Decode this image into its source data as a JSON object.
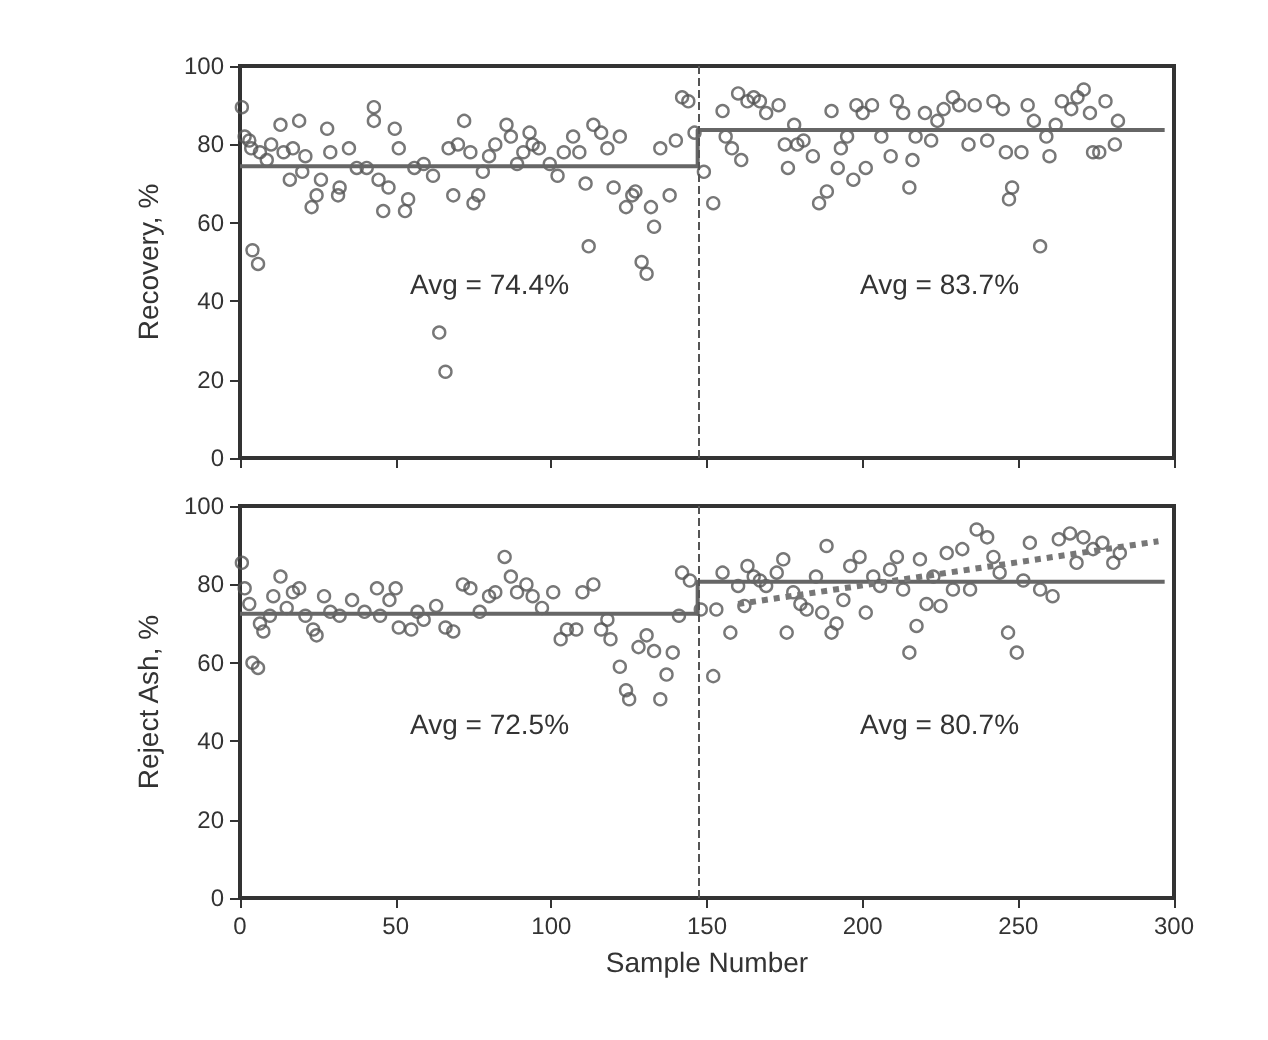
{
  "chart_data": [
    {
      "type": "scatter",
      "ylabel": "Recovery, %",
      "xlim": [
        0,
        300
      ],
      "xticks": [
        0,
        50,
        100,
        150,
        200,
        250,
        300
      ],
      "ylim": [
        0,
        100
      ],
      "yticks": [
        0,
        20,
        40,
        60,
        80,
        100
      ],
      "tick_labels": "y",
      "grid": false,
      "annotations": [
        "Avg = 74.4%",
        "Avg = 83.7%"
      ],
      "ref_lines": [
        {
          "axis": "x",
          "value": 147,
          "color": "#555555",
          "line_style": "dashed"
        }
      ],
      "series": [
        {
          "color": "#555555",
          "marker": "circle",
          "x": [
            0.6,
            1.5,
            3,
            3.6,
            4,
            5.8,
            6.4,
            8.6,
            10,
            13,
            14,
            16,
            17,
            19,
            20,
            21,
            23,
            24.6,
            26,
            28,
            29,
            31.5,
            32,
            35,
            37.5,
            40.7,
            43,
            43,
            44.5,
            46,
            47.7,
            49.7,
            51,
            53,
            54,
            56,
            59,
            62,
            64,
            66,
            67,
            68.5,
            70,
            72,
            74,
            75,
            76.5,
            78,
            80,
            82,
            85.6,
            87,
            89,
            91,
            93,
            94,
            96,
            99.5,
            102,
            104,
            107,
            109,
            111,
            112,
            113.5,
            116,
            118,
            120,
            122,
            124,
            126,
            127,
            129,
            130.6,
            132,
            133,
            135,
            138,
            140,
            142,
            144,
            146,
            149,
            152,
            155,
            156,
            158,
            160,
            161,
            163,
            165,
            167,
            169,
            173,
            175,
            176,
            178,
            179,
            181,
            184,
            186,
            188.5,
            190,
            192,
            193,
            195,
            197,
            198,
            200,
            201,
            203,
            206,
            209,
            211,
            213,
            215,
            216,
            217,
            220,
            222,
            224,
            226,
            229,
            231,
            234,
            236,
            240,
            242,
            245,
            246,
            247,
            248,
            251,
            253,
            255,
            257,
            259,
            260,
            262,
            264,
            267,
            269,
            271,
            273,
            274,
            276,
            278,
            281,
            282
          ],
          "values": [
            89.5,
            82,
            81,
            79,
            53,
            49.5,
            78,
            76,
            80,
            85,
            78,
            71,
            79,
            86,
            73,
            77,
            64,
            67,
            71,
            84,
            78,
            67,
            69,
            79,
            74,
            74,
            89.5,
            86,
            71,
            63,
            69,
            84,
            79,
            63,
            66,
            74,
            75,
            72,
            32,
            22,
            79,
            67,
            80,
            86,
            78,
            65,
            67,
            73,
            77,
            80,
            85,
            82,
            75,
            78,
            83,
            80,
            79,
            75,
            72,
            78,
            82,
            78,
            70,
            54,
            85,
            83,
            79,
            69,
            82,
            64,
            67,
            68,
            50,
            47,
            64,
            59,
            79,
            67,
            81,
            92,
            91,
            83,
            73,
            65,
            88.5,
            82,
            79,
            93,
            76,
            91,
            92,
            91,
            88,
            90,
            80,
            74,
            85,
            80,
            81,
            77,
            65,
            68,
            88.5,
            74,
            79,
            82,
            71,
            90,
            88,
            74,
            90,
            82,
            77,
            91,
            88,
            69,
            76,
            82,
            88,
            81,
            86,
            89,
            92,
            90,
            80,
            90,
            81,
            91,
            89,
            78,
            66,
            69,
            78,
            90,
            86,
            54,
            82,
            77,
            85,
            91,
            89,
            92,
            94,
            88,
            78,
            78,
            91,
            80,
            86
          ]
        },
        {
          "type": "line",
          "color": "#666666",
          "marker": "none",
          "x": [
            0,
            147,
            147,
            297
          ],
          "values": [
            74.4,
            74.4,
            83.7,
            83.7
          ]
        }
      ]
    },
    {
      "type": "scatter",
      "xlabel": "Sample Number",
      "ylabel": "Reject Ash, %",
      "xlim": [
        0,
        300
      ],
      "xticks": [
        0,
        50,
        100,
        150,
        200,
        250,
        300
      ],
      "ylim": [
        0,
        100
      ],
      "yticks": [
        0,
        20,
        40,
        60,
        80,
        100
      ],
      "grid": false,
      "annotations": [
        "Avg = 72.5%",
        "Avg = 80.7%"
      ],
      "ref_lines": [
        {
          "axis": "x",
          "value": 147,
          "color": "#555555",
          "line_style": "dashed"
        }
      ],
      "series": [
        {
          "color": "#555555",
          "marker": "circle",
          "x": [
            0.6,
            1.5,
            3,
            4,
            5.8,
            6.4,
            7.5,
            9.6,
            10.7,
            13,
            15,
            17,
            19,
            21,
            23.5,
            24.6,
            27,
            29,
            32,
            36,
            40,
            44,
            45,
            48,
            50,
            51,
            55,
            57,
            59,
            63,
            66,
            68.5,
            71.6,
            74,
            77,
            80,
            82,
            85,
            87,
            89,
            92,
            94,
            97,
            100.6,
            103,
            105,
            108,
            110,
            113.5,
            116,
            118,
            119,
            122,
            124,
            125,
            128,
            130.6,
            133,
            135,
            137,
            139,
            141,
            142,
            144.5,
            148,
            152,
            153,
            155,
            157.5,
            160,
            162,
            163,
            165,
            167,
            169,
            172.4,
            174.5,
            175.6,
            177.7,
            180,
            182,
            185,
            187,
            188.4,
            190,
            191.6,
            193.8,
            196,
            199,
            201,
            203.4,
            205.6,
            208.8,
            211,
            213,
            215,
            217.3,
            218.4,
            220.5,
            222.7,
            225,
            227,
            229,
            232,
            234.5,
            236.6,
            240,
            242,
            244,
            246.7,
            249.5,
            251.6,
            253.7,
            257,
            261,
            263,
            266.6,
            268.7,
            270.9,
            274,
            277,
            280.5,
            282.6
          ],
          "values": [
            85.5,
            79,
            75,
            60,
            58.7,
            70,
            68,
            72,
            77,
            82,
            74,
            78,
            79,
            72,
            68.5,
            67,
            77,
            73,
            72,
            76,
            73,
            79,
            72,
            76,
            79,
            69,
            68.5,
            73,
            71,
            74.5,
            69,
            68,
            80,
            79,
            73,
            77,
            78,
            87,
            82,
            78,
            80,
            77,
            74,
            78,
            66,
            68.5,
            68.5,
            78,
            80,
            68.5,
            71,
            66,
            59,
            53,
            50.7,
            64,
            67,
            63,
            50.7,
            57,
            62.6,
            72,
            83,
            81,
            73.6,
            56.6,
            73.6,
            83,
            67.7,
            79.6,
            74.5,
            84.7,
            82,
            81,
            79.6,
            83,
            86.4,
            67.7,
            78,
            75,
            73.6,
            82,
            72.8,
            89.8,
            67.7,
            70,
            76,
            84.7,
            87,
            72.8,
            82,
            79.6,
            83.8,
            87,
            78.7,
            62.6,
            69.4,
            86.4,
            75,
            82,
            74.5,
            88,
            78.7,
            89,
            78.7,
            94,
            92,
            87,
            83,
            67.7,
            62.6,
            81,
            90.6,
            78.7,
            77,
            91.5,
            93,
            85.5,
            92,
            89,
            90.6,
            85.5,
            88
          ]
        },
        {
          "type": "line",
          "color": "#666666",
          "marker": "none",
          "x": [
            0,
            147,
            147,
            297
          ],
          "values": [
            72.5,
            72.5,
            80.7,
            80.7
          ]
        },
        {
          "type": "line",
          "color": "#777777",
          "marker": "none",
          "line_style": "dotted",
          "x": [
            160,
            295
          ],
          "values": [
            75,
            91
          ]
        }
      ]
    }
  ]
}
